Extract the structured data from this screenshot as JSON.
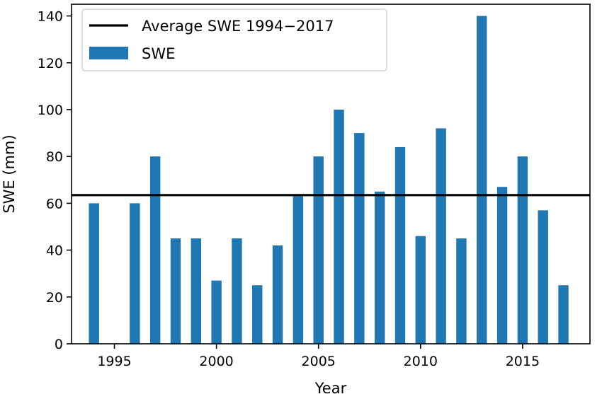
{
  "chart_data": {
    "type": "bar",
    "title": "",
    "xlabel": "Year",
    "ylabel": "SWE (mm)",
    "x": [
      1994,
      1996,
      1997,
      1998,
      1999,
      2000,
      2001,
      2002,
      2003,
      2004,
      2005,
      2006,
      2007,
      2008,
      2009,
      2010,
      2011,
      2012,
      2013,
      2014,
      2015,
      2016,
      2017
    ],
    "values": [
      60,
      60,
      80,
      45,
      45,
      27,
      45,
      25,
      42,
      63,
      80,
      100,
      90,
      65,
      84,
      46,
      92,
      45,
      140,
      67,
      80,
      57,
      25
    ],
    "xlim": [
      1992.9,
      2018.3
    ],
    "ylim": [
      0,
      145
    ],
    "xticks": [
      1995,
      2000,
      2005,
      2010,
      2015
    ],
    "yticks": [
      0,
      20,
      40,
      60,
      80,
      100,
      120,
      140
    ],
    "average_line": {
      "label": "Average SWE 1994−2017",
      "value": 63.5
    },
    "series": [
      {
        "name": "SWE",
        "color": "#1f77b4"
      }
    ],
    "legend": {
      "position": "top-left",
      "entries": [
        "Average SWE 1994−2017",
        "SWE"
      ]
    },
    "grid": false
  }
}
